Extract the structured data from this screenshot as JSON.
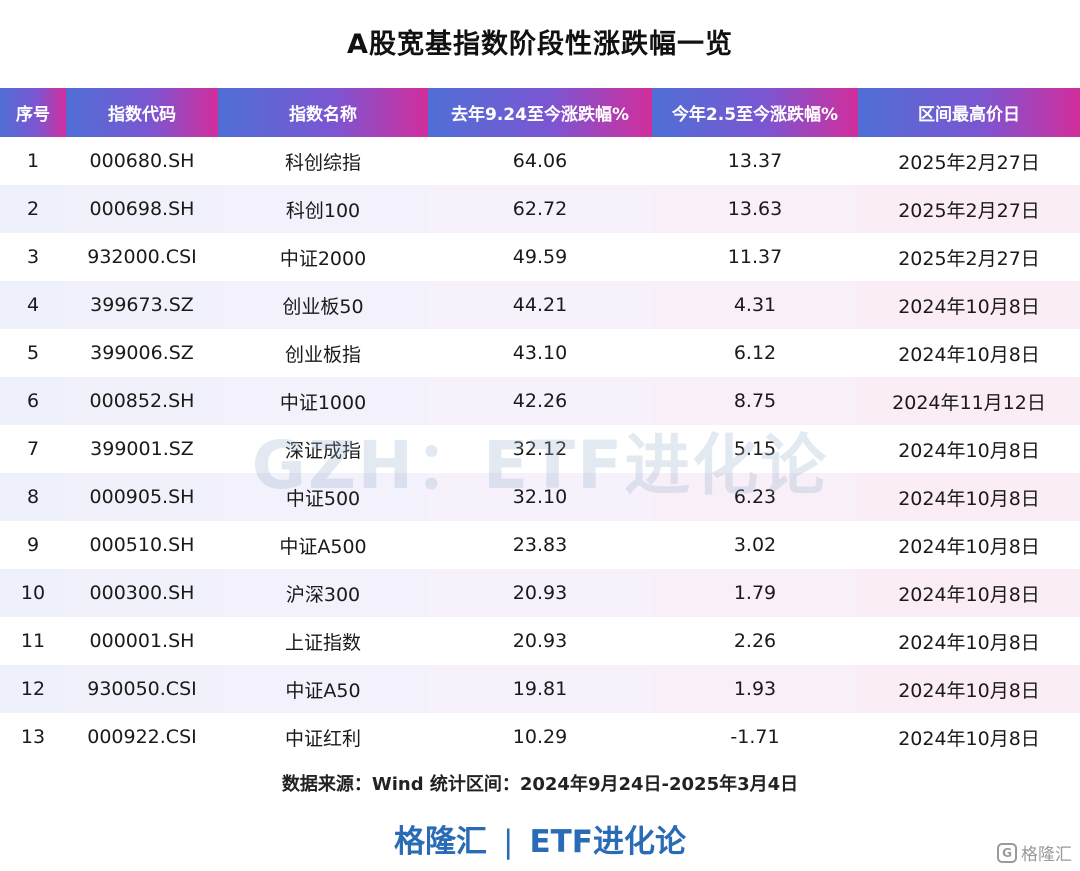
{
  "title": "A股宽基指数阶段性涨跌幅一览",
  "table": {
    "headers": [
      "序号",
      "指数代码",
      "指数名称",
      "去年9.24至今涨跌幅%",
      "今年2.5至今涨跌幅%",
      "区间最高价日"
    ],
    "rows": [
      [
        "1",
        "000680.SH",
        "科创综指",
        "64.06",
        "13.37",
        "2025年2月27日"
      ],
      [
        "2",
        "000698.SH",
        "科创100",
        "62.72",
        "13.63",
        "2025年2月27日"
      ],
      [
        "3",
        "932000.CSI",
        "中证2000",
        "49.59",
        "11.37",
        "2025年2月27日"
      ],
      [
        "4",
        "399673.SZ",
        "创业板50",
        "44.21",
        "4.31",
        "2024年10月8日"
      ],
      [
        "5",
        "399006.SZ",
        "创业板指",
        "43.10",
        "6.12",
        "2024年10月8日"
      ],
      [
        "6",
        "000852.SH",
        "中证1000",
        "42.26",
        "8.75",
        "2024年11月12日"
      ],
      [
        "7",
        "399001.SZ",
        "深证成指",
        "32.12",
        "5.15",
        "2024年10月8日"
      ],
      [
        "8",
        "000905.SH",
        "中证500",
        "32.10",
        "6.23",
        "2024年10月8日"
      ],
      [
        "9",
        "000510.SH",
        "中证A500",
        "23.83",
        "3.02",
        "2024年10月8日"
      ],
      [
        "10",
        "000300.SH",
        "沪深300",
        "20.93",
        "1.79",
        "2024年10月8日"
      ],
      [
        "11",
        "000001.SH",
        "上证指数",
        "20.93",
        "2.26",
        "2024年10月8日"
      ],
      [
        "12",
        "930050.CSI",
        "中证A50",
        "19.81",
        "1.93",
        "2024年10月8日"
      ],
      [
        "13",
        "000922.CSI",
        "中证红利",
        "10.29",
        "-1.71",
        "2024年10月8日"
      ]
    ]
  },
  "watermark": "GZH：ETF进化论",
  "source": "数据来源：Wind 统计区间：2024年9月24日-2025年3月4日",
  "brand": {
    "left": "格隆汇",
    "separator": "|",
    "right": "ETF进化论"
  },
  "corner_logo": {
    "icon": "gelonghui-logo-icon",
    "text": "格隆汇"
  },
  "colors": {
    "header_gradient_start": "#4f6fd6",
    "header_gradient_end": "#d22e9c",
    "brand": "#2a6bb6"
  }
}
